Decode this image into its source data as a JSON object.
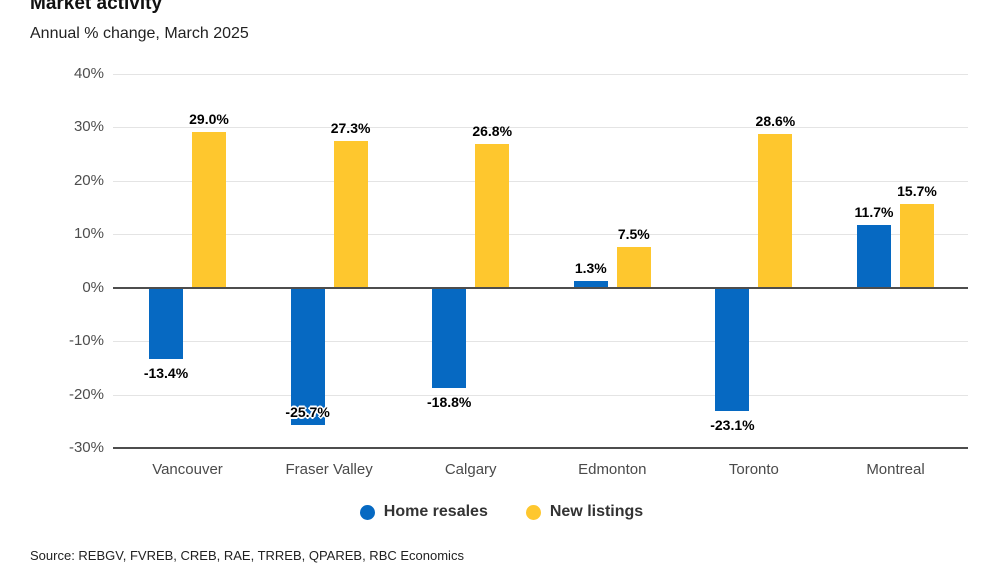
{
  "header": {
    "title": "Market activity",
    "subtitle": "Annual % change, March 2025"
  },
  "chart_data": {
    "type": "bar",
    "categories": [
      "Vancouver",
      "Fraser Valley",
      "Calgary",
      "Edmonton",
      "Toronto",
      "Montreal"
    ],
    "series": [
      {
        "name": "Home resales",
        "color": "#0669C2",
        "values": [
          -13.4,
          -25.7,
          -18.8,
          1.3,
          -23.1,
          11.7
        ]
      },
      {
        "name": "New listings",
        "color": "#FEC72E",
        "values": [
          29.0,
          27.3,
          26.8,
          7.5,
          28.6,
          15.7
        ]
      }
    ],
    "value_labels": {
      "home_resales": [
        "-13.4%",
        "-25.7%",
        "-18.8%",
        "1.3%",
        "-23.1%",
        "11.7%"
      ],
      "new_listings": [
        "29.0%",
        "27.3%",
        "26.8%",
        "7.5%",
        "28.6%",
        "15.7%"
      ]
    },
    "ylabel": "",
    "xlabel": "",
    "ylim": [
      -30,
      40
    ],
    "ytick_step": 10,
    "ytick_suffix": "%",
    "grid": "horizontal",
    "legend_position": "bottom",
    "axis_color": "#4d4d4d",
    "gridline_color": "#e4e4e4"
  },
  "source": "Source: REBGV, FVREB, CREB, RAE, TRREB, QPAREB, RBC Economics"
}
